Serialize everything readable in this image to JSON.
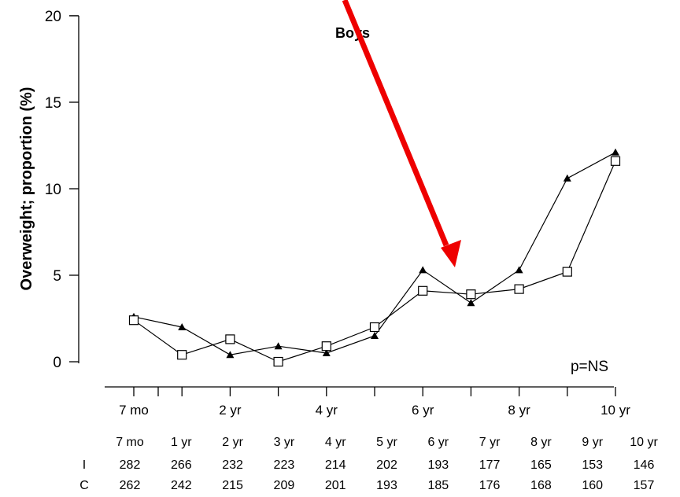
{
  "chart_data": {
    "type": "line",
    "title": "Boys",
    "ylabel": "Overweight; proportion (%)",
    "xlabel": "",
    "ylim": [
      0,
      20
    ],
    "yticks": [
      0,
      5,
      10,
      15,
      20
    ],
    "x_categories": [
      "7 mo",
      "1 yr",
      "2 yr",
      "3 yr",
      "4 yr",
      "5 yr",
      "6 yr",
      "7 yr",
      "8 yr",
      "9 yr",
      "10 yr"
    ],
    "x_axis_labels": [
      "7 mo",
      "2 yr",
      "4 yr",
      "6 yr",
      "8 yr",
      "10 yr"
    ],
    "series": [
      {
        "marker": "filled-triangle",
        "values": [
          2.6,
          2.0,
          0.4,
          0.9,
          0.5,
          1.5,
          5.3,
          3.4,
          5.3,
          10.6,
          12.1
        ]
      },
      {
        "marker": "open-square",
        "values": [
          2.4,
          0.4,
          1.3,
          0.0,
          0.9,
          2.0,
          4.1,
          3.9,
          4.2,
          5.2,
          11.6
        ]
      }
    ],
    "annotation": "p=NS",
    "legend": "none",
    "grid": false
  },
  "table": {
    "headers": [
      "7 mo",
      "1 yr",
      "2 yr",
      "3 yr",
      "4 yr",
      "5 yr",
      "6 yr",
      "7 yr",
      "8 yr",
      "9 yr",
      "10 yr"
    ],
    "rows": [
      {
        "label": "I",
        "values": [
          "282",
          "266",
          "232",
          "223",
          "214",
          "202",
          "193",
          "177",
          "165",
          "153",
          "146"
        ]
      },
      {
        "label": "C",
        "values": [
          "262",
          "242",
          "215",
          "209",
          "201",
          "193",
          "185",
          "176",
          "168",
          "160",
          "157"
        ]
      }
    ]
  },
  "colors": {
    "arrow": "#ee0000",
    "line": "#000000"
  }
}
